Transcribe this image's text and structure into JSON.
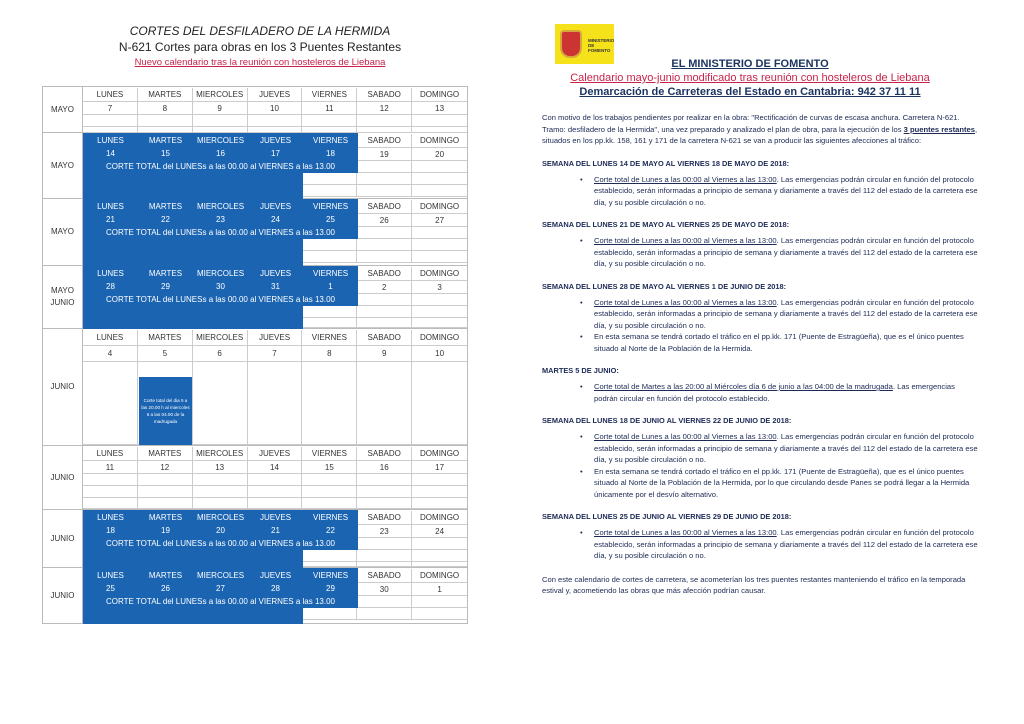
{
  "left": {
    "title": "CORTES DEL DESFILADERO DE LA HERMIDA",
    "subtitle": "N-621 Cortes para obras en los 3 Puentes Restantes",
    "note": "Nuevo calendario tras la reunión con hosteleros de Liebana",
    "day_headers": [
      "LUNES",
      "MARTES",
      "MIERCOLES",
      "JUEVES",
      "VIERNES",
      "SABADO",
      "DOMINGO"
    ],
    "cut_text": "CORTE TOTAL del LUNESs a las 00.00 al VIERNES a las 13.00",
    "weeks": [
      {
        "month": "MAYO",
        "days": [
          "7",
          "8",
          "9",
          "10",
          "11",
          "12",
          "13"
        ],
        "cut": false
      },
      {
        "month": "MAYO",
        "days": [
          "14",
          "15",
          "16",
          "17",
          "18",
          "19",
          "20"
        ],
        "cut": true
      },
      {
        "month": "MAYO",
        "days": [
          "21",
          "22",
          "23",
          "24",
          "25",
          "26",
          "27"
        ],
        "cut": true
      },
      {
        "month": "MAYO\nJUNIO",
        "days": [
          "28",
          "29",
          "30",
          "31",
          "1",
          "2",
          "3"
        ],
        "cut": true
      },
      {
        "month": "JUNIO",
        "days": [
          "4",
          "5",
          "6",
          "7",
          "8",
          "9",
          "10"
        ],
        "cut": false,
        "special_note": "Corte total del dia 5 a las 20.00 h al miercoles 6 a las 04.00 de la madrugada"
      },
      {
        "month": "JUNIO",
        "days": [
          "11",
          "12",
          "13",
          "14",
          "15",
          "16",
          "17"
        ],
        "cut": false
      },
      {
        "month": "JUNIO",
        "days": [
          "18",
          "19",
          "20",
          "21",
          "22",
          "23",
          "24"
        ],
        "cut": true
      },
      {
        "month": "JUNIO",
        "days": [
          "25",
          "26",
          "27",
          "28",
          "29",
          "30",
          "1"
        ],
        "cut": true
      }
    ],
    "cut_color": "#1b64b2"
  },
  "right": {
    "logo_text": "MINISTERIO DE FOMENTO",
    "title": "EL MINISTERIO DE FOMENTO",
    "subtitle": "Calendario mayo-junio modificado tras reunión con hosteleros de Liebana",
    "contact": "Demarcación de Carreteras del Estado en Cantabria:  942 37 11 11",
    "intro_a": "Con motivo de los trabajos pendientes por realizar en la obra: \"Rectificación de curvas de escasa anchura. Carretera N-621. Tramo: desfiladero de la Hermida\", una vez preparado y analizado el plan de obra, para la ejecución de los ",
    "intro_bold": "3 puentes restantes",
    "intro_b": ", situados en los pp.kk. 158, 161 y 171 de la carretera N-621 se van a producir las siguientes afecciones al tráfico:",
    "sections": [
      {
        "heading": "SEMANA DEL LUNES 14 DE MAYO AL VIERNES 18 DE MAYO DE 2018:",
        "bullets": [
          {
            "u": "Corte total de Lunes a las 00:00 al Viernes a las 13:00",
            "t": ". Las emergencias podrán circular en función del protocolo establecido, serán informadas a principio de semana y diariamente a través del 112 del estado de la carretera ese día, y su posible circulación o no."
          }
        ]
      },
      {
        "heading": "SEMANA DEL LUNES 21 DE MAYO AL VIERNES 25 DE MAYO DE 2018:",
        "bullets": [
          {
            "u": "Corte total de Lunes a las 00:00 al Viernes a las 13:00",
            "t": ". Las emergencias podrán circular en función del protocolo establecido, serán informadas a principio de semana y diariamente a través del 112 del estado de la carretera ese día, y su posible circulación o no."
          }
        ]
      },
      {
        "heading": "SEMANA DEL LUNES 28 DE MAYO AL VIERNES 1 DE JUNIO DE 2018:",
        "bullets": [
          {
            "u": "Corte total de Lunes a las 00:00 al Viernes a las 13:00",
            "t": ". Las emergencias podrán circular en función del protocolo establecido, serán informadas a principio de semana y diariamente a través del 112 del estado de la carretera ese día, y su posible circulación o no."
          },
          {
            "u": "",
            "t": "En esta semana se tendrá cortado el tráfico en el pp.kk. 171 (Puente de Estragüeña), que es el único puentes situado al Norte de la Población de la Hermida."
          }
        ]
      },
      {
        "heading": "MARTES 5 DE JUNIO:",
        "bullets": [
          {
            "u": "Corte total de Martes a las 20:00 al Miércoles día 6 de junio a las 04:00 de la madrugada",
            "t": ". Las emergencias podrán circular en función del protocolo establecido."
          }
        ]
      },
      {
        "heading": "SEMANA DEL LUNES 18 DE JUNIO AL VIERNES 22 DE JUNIO DE 2018:",
        "bullets": [
          {
            "u": "Corte total de Lunes a las 00:00 al Viernes a las 13:00",
            "t": ". Las emergencias podrán circular en función del protocolo establecido, serán informadas a principio de semana y diariamente a través del 112 del estado de la carretera ese día, y su posible circulación o no."
          },
          {
            "u": "",
            "t": "En esta semana se tendrá cortado el tráfico en el pp.kk. 171 (Puente de Estragüeña), que es el único puentes situado al Norte de la Población de la Hermida, por lo que circulando desde Panes se podrá llegar a la Hermida únicamente por el desvío alternativo."
          }
        ]
      },
      {
        "heading": "SEMANA DEL LUNES 25 DE JUNIO AL VIERNES 29 DE JUNIO DE 2018:",
        "bullets": [
          {
            "u": "Corte total de Lunes a las 00:00 al Viernes a las 13:00",
            "t": ". Las emergencias podrán circular en función del protocolo establecido, serán informadas a principio de semana y diariamente a través del 112 del estado de la carretera ese día, y su posible circulación o no."
          }
        ]
      }
    ],
    "closing": "Con este calendario de cortes de carretera, se acometerían los tres puentes restantes manteniendo el tráfico en la temporada estival y, acometiendo las obras que más afección podrían causar."
  }
}
